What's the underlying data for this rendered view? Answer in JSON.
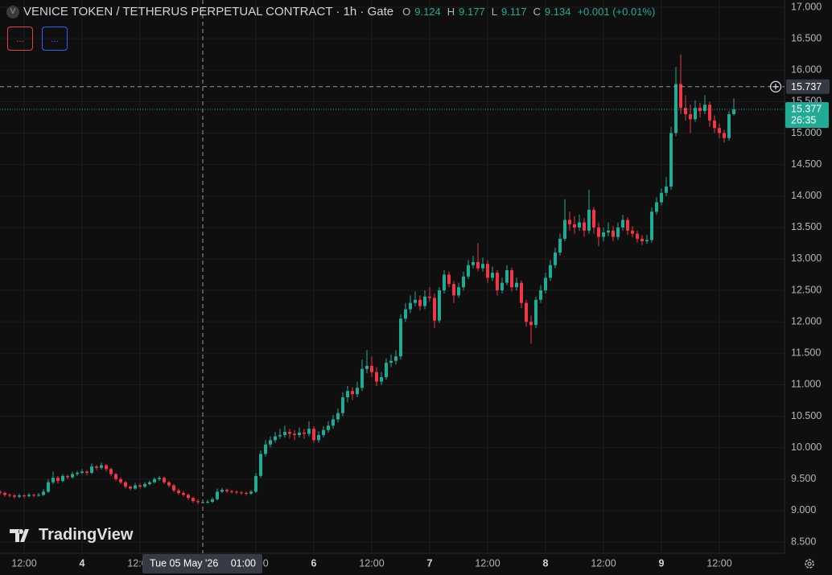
{
  "chart_data": {
    "type": "candlestick",
    "title": "VENICE TOKEN / TETHERUS PERPETUAL CONTRACT · 1h · Gate",
    "ohlc_labels": [
      "O",
      "H",
      "L",
      "C"
    ],
    "change_label": "+0.001 (+0.01%)",
    "indicator_buttons": [
      "...",
      "..."
    ],
    "brand": "TradingView",
    "up_color": "#22ab94",
    "down_color": "#f23645",
    "grid": true,
    "crosshair": {
      "price": {
        "value": 15.737,
        "label": "15.737"
      },
      "date_label": "Tue 05 May '26",
      "time_label": "01:00"
    },
    "countdown": "26:35",
    "ylim": [
      8.36,
      17.1
    ],
    "yticks": [
      {
        "value": 8.5,
        "label": "8.500"
      },
      {
        "value": 9,
        "label": "9.000"
      },
      {
        "value": 9.5,
        "label": "9.500"
      },
      {
        "value": 10,
        "label": "10.000"
      },
      {
        "value": 10.5,
        "label": "10.500"
      },
      {
        "value": 11,
        "label": "11.000"
      },
      {
        "value": 11.5,
        "label": "11.500"
      },
      {
        "value": 12,
        "label": "12.000"
      },
      {
        "value": 12.5,
        "label": "12.500"
      },
      {
        "value": 13,
        "label": "13.000"
      },
      {
        "value": 13.5,
        "label": "13.500"
      },
      {
        "value": 14,
        "label": "14.000"
      },
      {
        "value": 14.5,
        "label": "14.500"
      },
      {
        "value": 15,
        "label": "15.000"
      },
      {
        "value": 15.5,
        "label": "15.500"
      },
      {
        "value": 16,
        "label": "16.000"
      },
      {
        "value": 16.5,
        "label": "16.500"
      },
      {
        "value": 17,
        "label": "17.000"
      }
    ],
    "xticks": [
      {
        "value": 5,
        "label": "12:00"
      },
      {
        "value": 17,
        "label": "4"
      },
      {
        "value": 29,
        "label": "12:00"
      },
      {
        "value": 41,
        "label": "5"
      },
      {
        "value": 53,
        "label": "12:00"
      },
      {
        "value": 65,
        "label": "6"
      },
      {
        "value": 77,
        "label": "12:00"
      },
      {
        "value": 89,
        "label": "7"
      },
      {
        "value": 101,
        "label": "12:00"
      },
      {
        "value": 113,
        "label": "8"
      },
      {
        "value": 125,
        "label": "12:00"
      },
      {
        "value": 137,
        "label": "9"
      },
      {
        "value": 149,
        "label": "12:00"
      }
    ],
    "candles": [
      [
        9.3,
        9.33,
        9.25,
        9.28
      ],
      [
        9.28,
        9.3,
        9.22,
        9.25
      ],
      [
        9.25,
        9.27,
        9.21,
        9.24
      ],
      [
        9.24,
        9.26,
        9.19,
        9.22
      ],
      [
        9.22,
        9.27,
        9.2,
        9.24
      ],
      [
        9.24,
        9.26,
        9.2,
        9.23
      ],
      [
        9.23,
        9.28,
        9.21,
        9.25
      ],
      [
        9.25,
        9.27,
        9.21,
        9.24
      ],
      [
        9.24,
        9.28,
        9.22,
        9.25
      ],
      [
        9.25,
        9.34,
        9.23,
        9.3
      ],
      [
        9.3,
        9.5,
        9.28,
        9.45
      ],
      [
        9.45,
        9.62,
        9.42,
        9.52
      ],
      [
        9.52,
        9.55,
        9.43,
        9.47
      ],
      [
        9.47,
        9.58,
        9.45,
        9.55
      ],
      [
        9.55,
        9.57,
        9.5,
        9.53
      ],
      [
        9.53,
        9.62,
        9.51,
        9.58
      ],
      [
        9.58,
        9.63,
        9.55,
        9.6
      ],
      [
        9.6,
        9.66,
        9.58,
        9.62
      ],
      [
        9.62,
        9.64,
        9.56,
        9.6
      ],
      [
        9.6,
        9.75,
        9.58,
        9.7
      ],
      [
        9.7,
        9.72,
        9.64,
        9.68
      ],
      [
        9.68,
        9.76,
        9.65,
        9.72
      ],
      [
        9.72,
        9.74,
        9.62,
        9.66
      ],
      [
        9.66,
        9.68,
        9.55,
        9.58
      ],
      [
        9.58,
        9.6,
        9.47,
        9.5
      ],
      [
        9.5,
        9.53,
        9.42,
        9.45
      ],
      [
        9.45,
        9.47,
        9.35,
        9.38
      ],
      [
        9.38,
        9.4,
        9.32,
        9.35
      ],
      [
        9.35,
        9.44,
        9.33,
        9.4
      ],
      [
        9.4,
        9.43,
        9.35,
        9.38
      ],
      [
        9.38,
        9.45,
        9.36,
        9.42
      ],
      [
        9.42,
        9.48,
        9.4,
        9.45
      ],
      [
        9.45,
        9.53,
        9.43,
        9.5
      ],
      [
        9.5,
        9.55,
        9.47,
        9.52
      ],
      [
        9.52,
        9.54,
        9.42,
        9.45
      ],
      [
        9.45,
        9.47,
        9.37,
        9.4
      ],
      [
        9.4,
        9.42,
        9.29,
        9.32
      ],
      [
        9.32,
        9.35,
        9.25,
        9.28
      ],
      [
        9.28,
        9.31,
        9.22,
        9.25
      ],
      [
        9.25,
        9.27,
        9.17,
        9.2
      ],
      [
        9.2,
        9.22,
        9.12,
        9.15
      ],
      [
        9.15,
        9.18,
        9.1,
        9.133
      ],
      [
        9.124,
        9.177,
        9.117,
        9.134
      ],
      [
        9.134,
        9.17,
        9.11,
        9.14
      ],
      [
        9.14,
        9.21,
        9.12,
        9.18
      ],
      [
        9.18,
        9.35,
        9.16,
        9.3
      ],
      [
        9.3,
        9.36,
        9.28,
        9.33
      ],
      [
        9.33,
        9.35,
        9.28,
        9.31
      ],
      [
        9.31,
        9.33,
        9.27,
        9.3
      ],
      [
        9.3,
        9.32,
        9.26,
        9.29
      ],
      [
        9.29,
        9.31,
        9.25,
        9.28
      ],
      [
        9.28,
        9.3,
        9.24,
        9.27
      ],
      [
        9.27,
        9.33,
        9.25,
        9.3
      ],
      [
        9.3,
        9.6,
        9.28,
        9.55
      ],
      [
        9.55,
        9.95,
        9.52,
        9.9
      ],
      [
        9.9,
        10.12,
        9.86,
        10.05
      ],
      [
        10.05,
        10.18,
        10.0,
        10.12
      ],
      [
        10.12,
        10.25,
        10.08,
        10.18
      ],
      [
        10.18,
        10.3,
        10.14,
        10.2
      ],
      [
        10.2,
        10.35,
        10.16,
        10.25
      ],
      [
        10.25,
        10.3,
        10.15,
        10.22
      ],
      [
        10.22,
        10.28,
        10.12,
        10.2
      ],
      [
        10.2,
        10.32,
        10.16,
        10.24
      ],
      [
        10.24,
        10.3,
        10.14,
        10.22
      ],
      [
        10.22,
        10.42,
        10.18,
        10.3
      ],
      [
        10.3,
        10.34,
        10.08,
        10.12
      ],
      [
        10.12,
        10.26,
        10.08,
        10.2
      ],
      [
        10.2,
        10.34,
        10.16,
        10.28
      ],
      [
        10.28,
        10.42,
        10.24,
        10.35
      ],
      [
        10.35,
        10.52,
        10.3,
        10.45
      ],
      [
        10.45,
        10.62,
        10.4,
        10.55
      ],
      [
        10.55,
        10.88,
        10.5,
        10.8
      ],
      [
        10.8,
        10.98,
        10.72,
        10.9
      ],
      [
        10.9,
        10.96,
        10.76,
        10.85
      ],
      [
        10.85,
        11.05,
        10.8,
        10.95
      ],
      [
        10.95,
        11.4,
        10.9,
        11.25
      ],
      [
        11.25,
        11.55,
        11.18,
        11.3
      ],
      [
        11.3,
        11.45,
        11.12,
        11.2
      ],
      [
        11.2,
        11.28,
        10.98,
        11.05
      ],
      [
        11.05,
        11.2,
        11.0,
        11.12
      ],
      [
        11.12,
        11.42,
        11.08,
        11.35
      ],
      [
        11.35,
        11.48,
        11.28,
        11.38
      ],
      [
        11.38,
        11.55,
        11.32,
        11.45
      ],
      [
        11.45,
        12.12,
        11.4,
        12.05
      ],
      [
        12.05,
        12.3,
        12.0,
        12.2
      ],
      [
        12.2,
        12.42,
        12.14,
        12.3
      ],
      [
        12.3,
        12.48,
        12.25,
        12.35
      ],
      [
        12.35,
        12.42,
        12.18,
        12.25
      ],
      [
        12.25,
        12.5,
        12.2,
        12.4
      ],
      [
        12.4,
        12.55,
        12.32,
        12.38
      ],
      [
        12.38,
        12.45,
        11.9,
        12.02
      ],
      [
        12.02,
        12.55,
        11.98,
        12.5
      ],
      [
        12.5,
        12.82,
        12.45,
        12.75
      ],
      [
        12.75,
        12.8,
        12.55,
        12.6
      ],
      [
        12.6,
        12.65,
        12.3,
        12.42
      ],
      [
        12.42,
        12.62,
        12.38,
        12.55
      ],
      [
        12.55,
        12.8,
        12.5,
        12.72
      ],
      [
        12.72,
        12.98,
        12.68,
        12.9
      ],
      [
        12.9,
        13.05,
        12.85,
        12.95
      ],
      [
        12.95,
        13.25,
        12.8,
        12.85
      ],
      [
        12.85,
        13.02,
        12.8,
        12.92
      ],
      [
        12.92,
        12.98,
        12.62,
        12.7
      ],
      [
        12.7,
        12.88,
        12.65,
        12.78
      ],
      [
        12.78,
        12.82,
        12.42,
        12.5
      ],
      [
        12.5,
        12.7,
        12.45,
        12.62
      ],
      [
        12.62,
        12.9,
        12.58,
        12.82
      ],
      [
        12.82,
        12.86,
        12.48,
        12.55
      ],
      [
        12.55,
        12.7,
        12.5,
        12.62
      ],
      [
        12.62,
        12.66,
        12.22,
        12.3
      ],
      [
        12.3,
        12.35,
        11.92,
        12.0
      ],
      [
        12.0,
        12.1,
        11.65,
        11.95
      ],
      [
        11.95,
        12.4,
        11.9,
        12.35
      ],
      [
        12.35,
        12.58,
        12.3,
        12.5
      ],
      [
        12.5,
        12.78,
        12.45,
        12.7
      ],
      [
        12.7,
        12.98,
        12.65,
        12.9
      ],
      [
        12.9,
        13.18,
        12.85,
        13.1
      ],
      [
        13.1,
        13.4,
        13.05,
        13.32
      ],
      [
        13.32,
        13.95,
        13.28,
        13.62
      ],
      [
        13.62,
        13.75,
        13.45,
        13.55
      ],
      [
        13.55,
        13.68,
        13.4,
        13.5
      ],
      [
        13.5,
        13.7,
        13.45,
        13.58
      ],
      [
        13.58,
        13.65,
        13.35,
        13.45
      ],
      [
        13.45,
        14.1,
        13.4,
        13.78
      ],
      [
        13.78,
        13.82,
        13.4,
        13.5
      ],
      [
        13.5,
        13.58,
        13.2,
        13.35
      ],
      [
        13.35,
        13.5,
        13.28,
        13.42
      ],
      [
        13.42,
        13.58,
        13.36,
        13.45
      ],
      [
        13.45,
        13.52,
        13.28,
        13.35
      ],
      [
        13.35,
        13.58,
        13.3,
        13.5
      ],
      [
        13.5,
        13.7,
        13.45,
        13.62
      ],
      [
        13.62,
        13.66,
        13.38,
        13.45
      ],
      [
        13.45,
        13.52,
        13.34,
        13.4
      ],
      [
        13.4,
        13.45,
        13.26,
        13.32
      ],
      [
        13.32,
        13.38,
        13.22,
        13.28
      ],
      [
        13.28,
        13.38,
        13.24,
        13.3
      ],
      [
        13.3,
        13.82,
        13.26,
        13.75
      ],
      [
        13.75,
        13.98,
        13.7,
        13.9
      ],
      [
        13.9,
        14.12,
        13.85,
        14.05
      ],
      [
        14.05,
        14.3,
        14.0,
        14.15
      ],
      [
        14.15,
        15.1,
        14.1,
        15.0
      ],
      [
        15.0,
        16.05,
        14.95,
        15.78
      ],
      [
        15.78,
        16.25,
        15.3,
        15.4
      ],
      [
        15.4,
        15.6,
        15.2,
        15.3
      ],
      [
        15.3,
        15.45,
        15.0,
        15.22
      ],
      [
        15.22,
        15.52,
        15.18,
        15.4
      ],
      [
        15.4,
        15.48,
        15.25,
        15.35
      ],
      [
        15.35,
        15.6,
        15.3,
        15.45
      ],
      [
        15.45,
        15.5,
        15.1,
        15.2
      ],
      [
        15.2,
        15.28,
        15.0,
        15.08
      ],
      [
        15.08,
        15.15,
        14.92,
        15.0
      ],
      [
        15.0,
        15.05,
        14.85,
        14.92
      ],
      [
        14.92,
        15.35,
        14.88,
        15.3
      ],
      [
        15.3,
        15.55,
        15.28,
        15.377
      ]
    ]
  }
}
